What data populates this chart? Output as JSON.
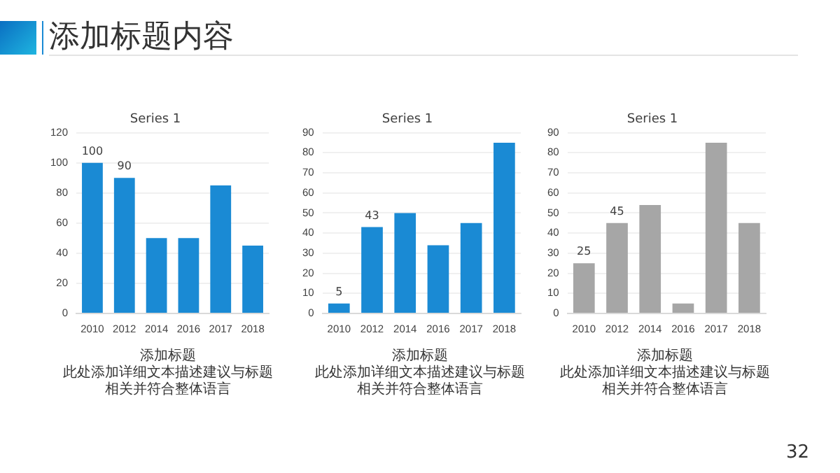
{
  "chart_data": [
    {
      "type": "other",
      "title": "添加标题内容",
      "annotations": [
        "32"
      ]
    },
    {
      "type": "bar",
      "title": "Series 1",
      "categories": [
        "2010",
        "2012",
        "2014",
        "2016",
        "2017",
        "2018"
      ],
      "values": [
        100,
        90,
        50,
        50,
        85,
        45
      ],
      "value_labels": [
        "100",
        "90",
        null,
        null,
        null,
        null
      ],
      "color": "#1a8ad4",
      "ylim": [
        0,
        120
      ],
      "yticks": [
        0,
        20,
        40,
        60,
        80,
        100,
        120
      ],
      "grid": "y",
      "annotations": [
        "添加标题",
        "此处添加详细文本描述建议与标题相关并符合整体语言"
      ]
    },
    {
      "type": "bar",
      "title": "Series 1",
      "categories": [
        "2010",
        "2012",
        "2014",
        "2016",
        "2017",
        "2018"
      ],
      "values": [
        5,
        43,
        50,
        34,
        45,
        85
      ],
      "value_labels": [
        "5",
        "43",
        null,
        null,
        null,
        null
      ],
      "color": "#1a8ad4",
      "ylim": [
        0,
        90
      ],
      "yticks": [
        0,
        10,
        20,
        30,
        40,
        50,
        60,
        70,
        80,
        90
      ],
      "grid": "y",
      "annotations": [
        "添加标题",
        "此处添加详细文本描述建议与标题相关并符合整体语言"
      ]
    },
    {
      "type": "bar",
      "title": "Series 1",
      "categories": [
        "2010",
        "2012",
        "2014",
        "2016",
        "2017",
        "2018"
      ],
      "values": [
        25,
        45,
        54,
        5,
        85,
        45
      ],
      "value_labels": [
        "25",
        "45",
        null,
        null,
        null,
        null
      ],
      "color": "#a6a6a6",
      "ylim": [
        0,
        90
      ],
      "yticks": [
        0,
        10,
        20,
        30,
        40,
        50,
        60,
        70,
        80,
        90
      ],
      "grid": "y",
      "annotations": [
        "添加标题",
        "此处添加详细文本描述建议与标题相关并符合整体语言"
      ]
    }
  ]
}
